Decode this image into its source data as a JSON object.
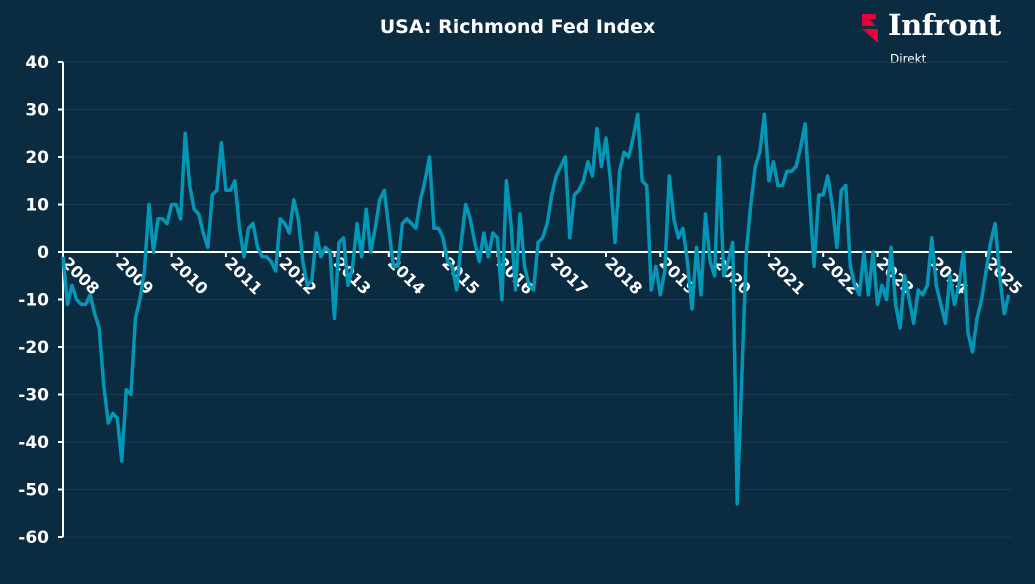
{
  "chart_data": {
    "type": "line",
    "title": "USA: Richmond Fed Index",
    "xlabel": "",
    "ylabel": "",
    "ylim": [
      -60,
      40
    ],
    "yticks": [
      40,
      30,
      20,
      10,
      0,
      -10,
      -20,
      -30,
      -40,
      -50,
      -60
    ],
    "xticks": [
      "2008",
      "2009",
      "2010",
      "2011",
      "2012",
      "2013",
      "2014",
      "2015",
      "2016",
      "2017",
      "2018",
      "2019",
      "2020",
      "2021",
      "2022",
      "2023",
      "2024",
      "2025"
    ],
    "grid": true,
    "legend": "none",
    "frequency": "monthly",
    "start": "2008-01",
    "series": [
      {
        "name": "Richmond Fed Index",
        "color": "#0096b6",
        "values": [
          -1,
          -11,
          -7,
          -10,
          -11,
          -11,
          -9,
          -13,
          -16,
          -28,
          -36,
          -34,
          -35,
          -44,
          -29,
          -30,
          -14,
          -10,
          -4,
          10,
          0,
          7,
          7,
          6,
          10,
          10,
          7,
          25,
          14,
          9,
          8,
          4,
          1,
          12,
          13,
          23,
          13,
          13,
          15,
          5,
          -1,
          5,
          6,
          1,
          -1,
          -1,
          -2,
          -4,
          7,
          6,
          4,
          11,
          7,
          -2,
          -7,
          -6,
          4,
          -1,
          1,
          0,
          -14,
          2,
          3,
          -7,
          -3,
          6,
          -1,
          9,
          0,
          5,
          11,
          13,
          5,
          -3,
          -3,
          6,
          7,
          6,
          5,
          11,
          15,
          20,
          5,
          5,
          3,
          -2,
          -3,
          -8,
          2,
          10,
          7,
          2,
          -2,
          4,
          -1,
          4,
          3,
          -10,
          15,
          6,
          -8,
          8,
          -3,
          -7,
          -8,
          2,
          3,
          6,
          12,
          16,
          18,
          20,
          3,
          12,
          13,
          15,
          19,
          16,
          26,
          18,
          24,
          15,
          2,
          17,
          21,
          20,
          24,
          29,
          15,
          14,
          -8,
          -3,
          -9,
          -4,
          16,
          7,
          3,
          5,
          -2,
          -12,
          1,
          -9,
          8,
          -2,
          -5,
          20,
          -5,
          -2,
          2,
          -53,
          -27,
          0,
          10,
          18,
          21,
          29,
          15,
          19,
          14,
          14,
          17,
          17,
          18,
          22,
          27,
          11,
          -3,
          12,
          12,
          16,
          10,
          1,
          13,
          14,
          -3,
          -7,
          -9,
          0,
          -9,
          0,
          -11,
          -7,
          -10,
          1,
          -11,
          -16,
          -5,
          -10,
          -15,
          -8,
          -9,
          -7,
          3,
          -7,
          -11,
          -15,
          -5,
          -11,
          -7,
          0,
          -17,
          -21,
          -14,
          -10,
          -4,
          2,
          6,
          -5,
          -13,
          -9
        ]
      }
    ]
  },
  "logo": {
    "brand": "Infront",
    "sub": "Direkt",
    "accent": "#e4003a"
  }
}
